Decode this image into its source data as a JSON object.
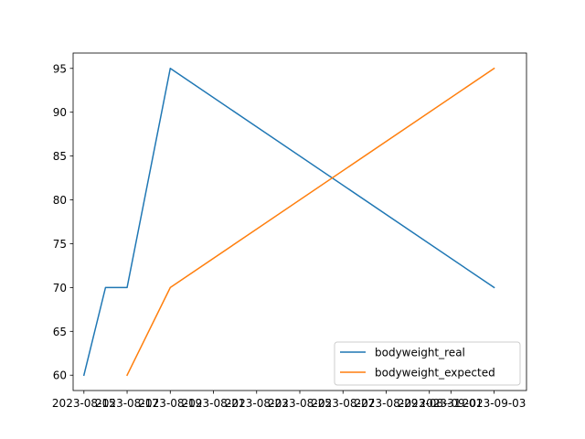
{
  "chart_data": {
    "type": "line",
    "title": "",
    "xlabel": "",
    "ylabel": "",
    "x_ticks": [
      "2023-08-15",
      "2023-08-17",
      "2023-08-19",
      "2023-08-21",
      "2023-08-23",
      "2023-08-25",
      "2023-08-27",
      "2023-08-29",
      "2023-08-31",
      "2023-09-01",
      "2023-09-03"
    ],
    "y_ticks": [
      60,
      65,
      70,
      75,
      80,
      85,
      90,
      95
    ],
    "xlim": [
      "2023-08-14 12:00",
      "2023-09-04 12:00"
    ],
    "ylim": [
      58.25,
      96.75
    ],
    "grid": false,
    "legend_position": "lower-right",
    "series": [
      {
        "name": "bodyweight_real",
        "color": "#1f77b4",
        "x": [
          "2023-08-15",
          "2023-08-16",
          "2023-08-17",
          "2023-08-19",
          "2023-09-03"
        ],
        "y": [
          60,
          70,
          70,
          95,
          70
        ]
      },
      {
        "name": "bodyweight_expected",
        "color": "#ff7f0e",
        "x": [
          "2023-08-17",
          "2023-08-19",
          "2023-09-03"
        ],
        "y": [
          60,
          70,
          95
        ]
      }
    ]
  }
}
